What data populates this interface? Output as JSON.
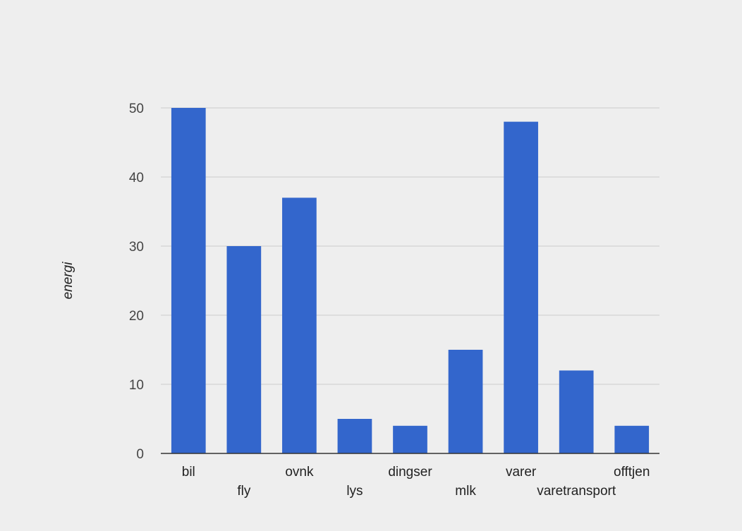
{
  "chart_data": {
    "type": "bar",
    "categories": [
      "bil",
      "fly",
      "ovnk",
      "lys",
      "dingser",
      "mlk",
      "varer",
      "varetransport",
      "offtjen"
    ],
    "values": [
      50,
      30,
      37,
      5,
      4,
      15,
      48,
      12,
      4
    ],
    "xlabel": "",
    "ylabel": "energi",
    "ylim": [
      0,
      50
    ],
    "yticks": [
      0,
      10,
      20,
      30,
      40,
      50
    ],
    "grid": true,
    "bar_color": "#3366cc",
    "label_rows": "alternating"
  }
}
